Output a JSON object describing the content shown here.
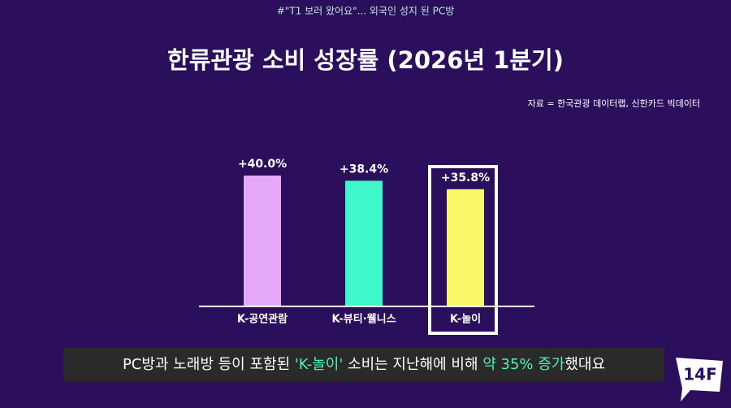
{
  "top_caption": "#\"T1 보러 왔어요\"... 외국인 성지 된 PC방",
  "chart_data": {
    "type": "bar",
    "title": "한류관광 소비 성장률 (2026년 1분기)",
    "source": "자료 = 한국관광 데이터랩, 신한카드 빅데이터",
    "categories": [
      "K-공연관람",
      "K-뷰티·웰니스",
      "K-놀이"
    ],
    "values": [
      40.0,
      38.4,
      35.8
    ],
    "value_labels": [
      "+40.0%",
      "+38.4%",
      "+35.8%"
    ],
    "colors": [
      "#e6a9fa",
      "#3ef7cb",
      "#f9f667"
    ]
  },
  "subtitle": [
    "PC방과 노래방 등이 포함된 ",
    "'K-놀이'",
    " 소비는 지난해에 비해 ",
    "약 35% 증가",
    "했대요"
  ],
  "logo": "14F"
}
